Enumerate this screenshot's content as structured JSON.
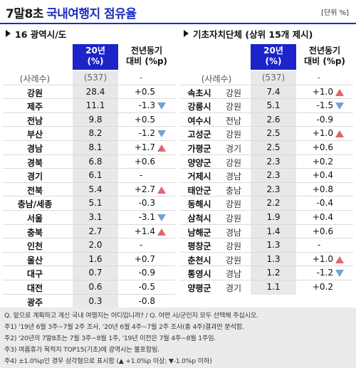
{
  "header": {
    "title_part1": "7말8초",
    "title_part2": "국내여행지 점유율",
    "unit": "[단위 %]"
  },
  "colors": {
    "accent": "#1b24c8",
    "up": "#e0656f",
    "down": "#6fa3d8"
  },
  "chart_data": [
    {
      "type": "table",
      "title": "16 광역시/도",
      "col_share": "20년\n(%)",
      "col_yoy": "전년동기\n대비 (%p)",
      "sample_label": "(사례수)",
      "sample_n": "(537)",
      "sample_yoy": "-",
      "rows": [
        {
          "name": "강원",
          "share": "28.4",
          "yoy": "+0.5",
          "mark": ""
        },
        {
          "name": "제주",
          "share": "11.1",
          "yoy": "-1.3",
          "mark": "down"
        },
        {
          "name": "전남",
          "share": "9.8",
          "yoy": "+0.5",
          "mark": ""
        },
        {
          "name": "부산",
          "share": "8.2",
          "yoy": "-1.2",
          "mark": "down"
        },
        {
          "name": "경남",
          "share": "8.1",
          "yoy": "+1.7",
          "mark": "up"
        },
        {
          "name": "경북",
          "share": "6.8",
          "yoy": "+0.6",
          "mark": ""
        },
        {
          "name": "경기",
          "share": "6.1",
          "yoy": "-",
          "mark": ""
        },
        {
          "name": "전북",
          "share": "5.4",
          "yoy": "+2.7",
          "mark": "up"
        },
        {
          "name": "충남/세종",
          "share": "5.1",
          "yoy": "-0.3",
          "mark": ""
        },
        {
          "name": "서울",
          "share": "3.1",
          "yoy": "-3.1",
          "mark": "down"
        },
        {
          "name": "충북",
          "share": "2.7",
          "yoy": "+1.4",
          "mark": "up"
        },
        {
          "name": "인천",
          "share": "2.0",
          "yoy": "-",
          "mark": ""
        },
        {
          "name": "울산",
          "share": "1.6",
          "yoy": "+0.7",
          "mark": ""
        },
        {
          "name": "대구",
          "share": "0.7",
          "yoy": "-0.9",
          "mark": ""
        },
        {
          "name": "대전",
          "share": "0.6",
          "yoy": "-0.5",
          "mark": ""
        },
        {
          "name": "광주",
          "share": "0.3",
          "yoy": "-0.8",
          "mark": ""
        }
      ]
    },
    {
      "type": "table",
      "title": "기초자치단체 (상위 15개 제시)",
      "col_share": "20년\n(%)",
      "col_yoy": "전년동기\n대비 (%p)",
      "sample_label": "(사례수)",
      "sample_n": "(537)",
      "sample_yoy": "-",
      "rows": [
        {
          "name": "속초시",
          "region": "강원",
          "share": "7.4",
          "yoy": "+1.0",
          "mark": "up"
        },
        {
          "name": "강릉시",
          "region": "강원",
          "share": "5.1",
          "yoy": "-1.5",
          "mark": "down"
        },
        {
          "name": "여수시",
          "region": "전남",
          "share": "2.6",
          "yoy": "-0.9",
          "mark": ""
        },
        {
          "name": "고성군",
          "region": "강원",
          "share": "2.5",
          "yoy": "+1.0",
          "mark": "up"
        },
        {
          "name": "가평군",
          "region": "경기",
          "share": "2.5",
          "yoy": "+0.6",
          "mark": ""
        },
        {
          "name": "양양군",
          "region": "강원",
          "share": "2.3",
          "yoy": "+0.2",
          "mark": ""
        },
        {
          "name": "거제시",
          "region": "경남",
          "share": "2.3",
          "yoy": "+0.4",
          "mark": ""
        },
        {
          "name": "태안군",
          "region": "충남",
          "share": "2.3",
          "yoy": "+0.8",
          "mark": ""
        },
        {
          "name": "동해시",
          "region": "강원",
          "share": "2.2",
          "yoy": "-0.4",
          "mark": ""
        },
        {
          "name": "삼척시",
          "region": "강원",
          "share": "1.9",
          "yoy": "+0.4",
          "mark": ""
        },
        {
          "name": "남해군",
          "region": "경남",
          "share": "1.4",
          "yoy": "+0.6",
          "mark": ""
        },
        {
          "name": "평창군",
          "region": "강원",
          "share": "1.3",
          "yoy": "-",
          "mark": ""
        },
        {
          "name": "춘천시",
          "region": "강원",
          "share": "1.3",
          "yoy": "+1.0",
          "mark": "up"
        },
        {
          "name": "통영시",
          "region": "경남",
          "share": "1.2",
          "yoy": "-1.2",
          "mark": "down"
        },
        {
          "name": "양평군",
          "region": "경기",
          "share": "1.1",
          "yoy": "+0.2",
          "mark": ""
        }
      ]
    }
  ],
  "notes": [
    "Q. 앞으로 계획하고 계신 국내 여행지는 어디입니까? / Q. 어떤 시/군인지 모두 선택해 주십시오.",
    "주1) '19년 6월 3주~7월 2주 조사, '20년 6월 4주~7월 2주 조사(총 4주)결과만 분석함.",
    "주2) '20년의 7말8초는 7월 3주~8월 1주, '19년 이전은 7월 4주~8월 1주임.",
    "주3) 여름휴가 목적지 TOP15(기초)에 광역시는 불포함됨.",
    "주4) ±1.0%p인 경우 삼각형으로 표시함 (▲ +1.0%p 이상; ▼-1.0%p 이하)"
  ]
}
